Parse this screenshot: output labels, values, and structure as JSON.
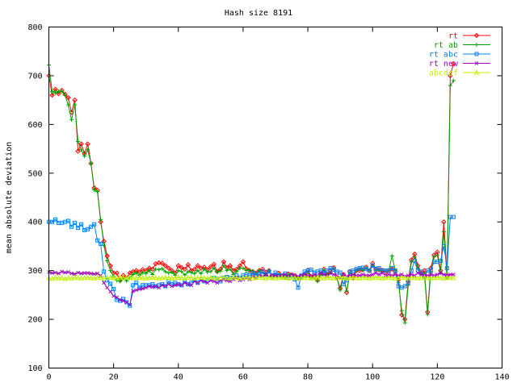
{
  "chart_data": {
    "type": "line",
    "title": "Hash size 8191",
    "xlabel": "",
    "ylabel": "mean absolute deviation",
    "xlim": [
      0,
      140
    ],
    "ylim": [
      100,
      800
    ],
    "xticks": [
      0,
      20,
      40,
      60,
      80,
      100,
      120,
      140
    ],
    "yticks": [
      100,
      200,
      300,
      400,
      500,
      600,
      700,
      800
    ],
    "grid": false,
    "legend_position": "top-right",
    "series": [
      {
        "name": "rt",
        "color": "#ff0000",
        "marker": "diamond",
        "x": [
          0,
          1,
          2,
          3,
          4,
          5,
          6,
          7,
          8,
          9,
          10,
          11,
          12,
          13,
          14,
          15,
          16,
          17,
          18,
          19,
          20,
          21,
          22,
          23,
          24,
          25,
          26,
          27,
          28,
          29,
          30,
          31,
          32,
          33,
          34,
          35,
          36,
          37,
          38,
          39,
          40,
          41,
          42,
          43,
          44,
          45,
          46,
          47,
          48,
          49,
          50,
          51,
          52,
          53,
          54,
          55,
          56,
          57,
          58,
          59,
          60,
          61,
          62,
          63,
          64,
          65,
          66,
          67,
          68,
          69,
          70,
          71,
          72,
          73,
          74,
          75,
          76,
          77,
          78,
          79,
          80,
          81,
          82,
          83,
          84,
          85,
          86,
          87,
          88,
          89,
          90,
          91,
          92,
          93,
          94,
          95,
          96,
          97,
          98,
          99,
          100,
          101,
          102,
          103,
          104,
          105,
          106,
          107,
          108,
          109,
          110,
          111,
          112,
          113,
          114,
          115,
          116,
          117,
          118,
          119,
          120,
          121,
          122,
          123,
          124,
          125
        ],
        "y": [
          700,
          660,
          672,
          663,
          670,
          662,
          655,
          625,
          650,
          545,
          560,
          540,
          560,
          520,
          470,
          465,
          400,
          360,
          330,
          310,
          295,
          295,
          280,
          290,
          285,
          295,
          298,
          300,
          297,
          302,
          300,
          305,
          303,
          314,
          316,
          315,
          310,
          305,
          300,
          295,
          310,
          306,
          303,
          312,
          300,
          303,
          310,
          305,
          307,
          302,
          308,
          313,
          298,
          303,
          318,
          306,
          310,
          300,
          303,
          310,
          318,
          304,
          300,
          298,
          295,
          300,
          303,
          297,
          300,
          290,
          291,
          295,
          289,
          288,
          293,
          291,
          290,
          285,
          288,
          293,
          301,
          288,
          288,
          280,
          293,
          303,
          292,
          299,
          306,
          285,
          264,
          292,
          255,
          298,
          285,
          300,
          300,
          302,
          307,
          300,
          315,
          303,
          302,
          301,
          297,
          300,
          303,
          299,
          281,
          209,
          200,
          278,
          322,
          334,
          310,
          295,
          300,
          215,
          305,
          332,
          338,
          300,
          400,
          290,
          700,
          725
        ]
      },
      {
        "name": "rt ab",
        "color": "#00a000",
        "marker": "plus",
        "x": [
          0,
          1,
          2,
          3,
          4,
          5,
          6,
          7,
          8,
          9,
          10,
          11,
          12,
          13,
          14,
          15,
          16,
          17,
          18,
          19,
          20,
          21,
          22,
          23,
          24,
          25,
          26,
          27,
          28,
          29,
          30,
          31,
          32,
          33,
          34,
          35,
          36,
          37,
          38,
          39,
          40,
          41,
          42,
          43,
          44,
          45,
          46,
          47,
          48,
          49,
          50,
          51,
          52,
          53,
          54,
          55,
          56,
          57,
          58,
          59,
          60,
          61,
          62,
          63,
          64,
          65,
          66,
          67,
          68,
          69,
          70,
          71,
          72,
          73,
          74,
          75,
          76,
          77,
          78,
          79,
          80,
          81,
          82,
          83,
          84,
          85,
          86,
          87,
          88,
          89,
          90,
          91,
          92,
          93,
          94,
          95,
          96,
          97,
          98,
          99,
          100,
          101,
          102,
          103,
          104,
          105,
          106,
          107,
          108,
          109,
          110,
          111,
          112,
          113,
          114,
          115,
          116,
          117,
          118,
          119,
          120,
          121,
          122,
          123,
          124,
          125
        ],
        "y": [
          722,
          668,
          665,
          668,
          668,
          660,
          640,
          610,
          640,
          565,
          548,
          535,
          548,
          520,
          466,
          462,
          405,
          352,
          320,
          300,
          288,
          280,
          278,
          285,
          279,
          286,
          292,
          295,
          290,
          296,
          294,
          300,
          292,
          303,
          302,
          304,
          298,
          295,
          297,
          290,
          300,
          298,
          291,
          298,
          296,
          294,
          300,
          294,
          303,
          297,
          298,
          305,
          297,
          299,
          310,
          300,
          303,
          292,
          298,
          305,
          305,
          300,
          301,
          299,
          293,
          300,
          296,
          290,
          300,
          287,
          291,
          293,
          287,
          286,
          292,
          287,
          285,
          283,
          285,
          289,
          297,
          286,
          286,
          278,
          290,
          301,
          291,
          295,
          305,
          285,
          260,
          290,
          258,
          296,
          290,
          300,
          305,
          300,
          305,
          300,
          310,
          300,
          300,
          300,
          300,
          300,
          330,
          300,
          275,
          218,
          193,
          270,
          318,
          328,
          305,
          292,
          295,
          210,
          298,
          328,
          332,
          295,
          380,
          285,
          680,
          690
        ]
      },
      {
        "name": "rt abc",
        "color": "#0080ff",
        "marker": "square",
        "x": [
          0,
          1,
          2,
          3,
          4,
          5,
          6,
          7,
          8,
          9,
          10,
          11,
          12,
          13,
          14,
          15,
          16,
          17,
          18,
          19,
          20,
          21,
          22,
          23,
          24,
          25,
          26,
          27,
          28,
          29,
          30,
          31,
          32,
          33,
          34,
          35,
          36,
          37,
          38,
          39,
          40,
          41,
          42,
          43,
          44,
          45,
          46,
          47,
          48,
          49,
          50,
          51,
          52,
          53,
          54,
          55,
          56,
          57,
          58,
          59,
          60,
          61,
          62,
          63,
          64,
          65,
          66,
          67,
          68,
          69,
          70,
          71,
          72,
          73,
          74,
          75,
          76,
          77,
          78,
          79,
          80,
          81,
          82,
          83,
          84,
          85,
          86,
          87,
          88,
          89,
          90,
          91,
          92,
          93,
          94,
          95,
          96,
          97,
          98,
          99,
          100,
          101,
          102,
          103,
          104,
          105,
          106,
          107,
          108,
          109,
          110,
          111,
          112,
          113,
          114,
          115,
          116,
          117,
          118,
          119,
          120,
          121,
          122,
          123,
          124,
          125
        ],
        "y": [
          400,
          400,
          405,
          398,
          398,
          400,
          402,
          390,
          398,
          388,
          395,
          383,
          385,
          390,
          395,
          362,
          355,
          298,
          280,
          273,
          262,
          240,
          238,
          242,
          235,
          228,
          270,
          275,
          265,
          270,
          270,
          270,
          272,
          268,
          270,
          272,
          268,
          278,
          272,
          275,
          272,
          270,
          278,
          272,
          275,
          280,
          275,
          282,
          278,
          280,
          282,
          285,
          283,
          278,
          285,
          287,
          285,
          285,
          290,
          285,
          290,
          292,
          290,
          295,
          290,
          293,
          298,
          292,
          298,
          290,
          296,
          290,
          290,
          294,
          285,
          290,
          282,
          265,
          290,
          298,
          300,
          302,
          296,
          298,
          300,
          295,
          300,
          305,
          302,
          298,
          296,
          272,
          280,
          298,
          300,
          303,
          305,
          306,
          303,
          300,
          310,
          304,
          305,
          300,
          300,
          300,
          305,
          300,
          268,
          265,
          268,
          275,
          300,
          320,
          300,
          298,
          288,
          300,
          300,
          318,
          318,
          320,
          350,
          305,
          410,
          410
        ]
      },
      {
        "name": "rt new",
        "color": "#a000c0",
        "marker": "cross",
        "x": [
          0,
          1,
          2,
          3,
          4,
          5,
          6,
          7,
          8,
          9,
          10,
          11,
          12,
          13,
          14,
          15,
          16,
          17,
          18,
          19,
          20,
          21,
          22,
          23,
          24,
          25,
          26,
          27,
          28,
          29,
          30,
          31,
          32,
          33,
          34,
          35,
          36,
          37,
          38,
          39,
          40,
          41,
          42,
          43,
          44,
          45,
          46,
          47,
          48,
          49,
          50,
          51,
          52,
          53,
          54,
          55,
          56,
          57,
          58,
          59,
          60,
          61,
          62,
          63,
          64,
          65,
          66,
          67,
          68,
          69,
          70,
          71,
          72,
          73,
          74,
          75,
          76,
          77,
          78,
          79,
          80,
          81,
          82,
          83,
          84,
          85,
          86,
          87,
          88,
          89,
          90,
          91,
          92,
          93,
          94,
          95,
          96,
          97,
          98,
          99,
          100,
          101,
          102,
          103,
          104,
          105,
          106,
          107,
          108,
          109,
          110,
          111,
          112,
          113,
          114,
          115,
          116,
          117,
          118,
          119,
          120,
          121,
          122,
          123,
          124,
          125
        ],
        "y": [
          297,
          295,
          296,
          294,
          298,
          296,
          297,
          294,
          293,
          296,
          294,
          295,
          295,
          294,
          293,
          294,
          290,
          275,
          265,
          257,
          248,
          245,
          240,
          238,
          235,
          230,
          258,
          260,
          262,
          263,
          265,
          268,
          266,
          268,
          265,
          270,
          268,
          272,
          268,
          270,
          272,
          270,
          275,
          272,
          270,
          278,
          275,
          280,
          278,
          275,
          280,
          278,
          275,
          280,
          282,
          280,
          278,
          282,
          285,
          280,
          282,
          285,
          282,
          288,
          285,
          290,
          288,
          292,
          288,
          290,
          290,
          288,
          290,
          292,
          288,
          292,
          290,
          288,
          290,
          292,
          290,
          288,
          292,
          290,
          295,
          292,
          290,
          295,
          292,
          290,
          285,
          292,
          288,
          290,
          292,
          290,
          290,
          292,
          290,
          290,
          292,
          295,
          292,
          295,
          290,
          292,
          290,
          292,
          290,
          292,
          288,
          290,
          292,
          290,
          295,
          292,
          290,
          290,
          292,
          290,
          292,
          295,
          292,
          290,
          292,
          292
        ]
      },
      {
        "name": "abcdef",
        "color": "#c0f000",
        "marker": "triangle",
        "x": [
          0,
          1,
          2,
          3,
          4,
          5,
          6,
          7,
          8,
          9,
          10,
          11,
          12,
          13,
          14,
          15,
          16,
          17,
          18,
          19,
          20,
          21,
          22,
          23,
          24,
          25,
          26,
          27,
          28,
          29,
          30,
          31,
          32,
          33,
          34,
          35,
          36,
          37,
          38,
          39,
          40,
          41,
          42,
          43,
          44,
          45,
          46,
          47,
          48,
          49,
          50,
          51,
          52,
          53,
          54,
          55,
          56,
          57,
          58,
          59,
          60,
          61,
          62,
          63,
          64,
          65,
          66,
          67,
          68,
          69,
          70,
          71,
          72,
          73,
          74,
          75,
          76,
          77,
          78,
          79,
          80,
          81,
          82,
          83,
          84,
          85,
          86,
          87,
          88,
          89,
          90,
          91,
          92,
          93,
          94,
          95,
          96,
          97,
          98,
          99,
          100,
          101,
          102,
          103,
          104,
          105,
          106,
          107,
          108,
          109,
          110,
          111,
          112,
          113,
          114,
          115,
          116,
          117,
          118,
          119,
          120,
          121,
          122,
          123,
          124,
          125
        ],
        "y": [
          285,
          283,
          286,
          284,
          285,
          283,
          285,
          284,
          286,
          285,
          284,
          285,
          286,
          285,
          284,
          286,
          285,
          284,
          285,
          286,
          285,
          284,
          286,
          285,
          285,
          286,
          284,
          285,
          286,
          285,
          284,
          285,
          286,
          285,
          284,
          285,
          286,
          285,
          284,
          285,
          286,
          285,
          284,
          286,
          285,
          284,
          285,
          286,
          285,
          284,
          286,
          285,
          284,
          285,
          286,
          285,
          284,
          286,
          285,
          284,
          285,
          286,
          285,
          284,
          285,
          286,
          285,
          284,
          286,
          285,
          284,
          285,
          286,
          285,
          284,
          286,
          285,
          284,
          285,
          286,
          285,
          284,
          285,
          286,
          285,
          284,
          286,
          285,
          284,
          285,
          286,
          285,
          284,
          285,
          286,
          285,
          284,
          286,
          285,
          284,
          285,
          286,
          285,
          284,
          285,
          286,
          285,
          284,
          285,
          286,
          285,
          284,
          286,
          285,
          284,
          285,
          286,
          285,
          284,
          285,
          286,
          285,
          284,
          286,
          285,
          285
        ]
      }
    ]
  }
}
